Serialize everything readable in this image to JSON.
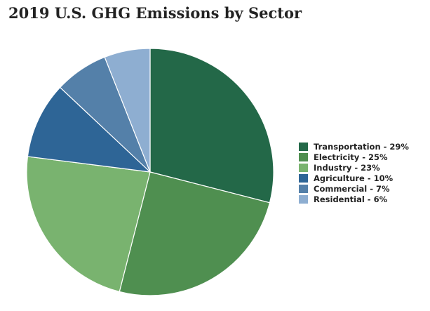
{
  "chart_data": {
    "type": "pie",
    "title": "2019 U.S. GHG Emissions by Sector",
    "slices": [
      {
        "name": "Transportation",
        "value": 29,
        "color": "#236848",
        "legend": "Transportation - 29%"
      },
      {
        "name": "Electricity",
        "value": 25,
        "color": "#4f8f50",
        "legend": "Electricity - 25%"
      },
      {
        "name": "Industry",
        "value": 23,
        "color": "#79b36f",
        "legend": "Industry - 23%"
      },
      {
        "name": "Agriculture",
        "value": 10,
        "color": "#2e6596",
        "legend": "Agriculture - 10%"
      },
      {
        "name": "Commercial",
        "value": 7,
        "color": "#5480a9",
        "legend": "Commercial - 7%"
      },
      {
        "name": "Residential",
        "value": 6,
        "color": "#8eaed1",
        "legend": "Residential - 6%"
      }
    ],
    "legend_position": "right"
  }
}
